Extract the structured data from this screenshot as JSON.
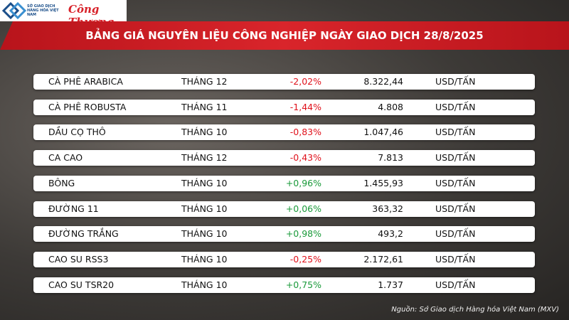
{
  "header": {
    "logo_text": "SỞ GIAO DỊCH HÀNG HÓA VIỆT NAM",
    "brand": "Công Thương",
    "title": "BẢNG GIÁ NGUYÊN LIỆU CÔNG NGHIỆP NGÀY GIAO DỊCH 28/8/2025"
  },
  "table": {
    "positive_color": "#1a9a3a",
    "negative_color": "#e0101a",
    "rows": [
      [
        "CÀ PHÊ ARABICA",
        "THÁNG 12",
        "-2,02%",
        "8.322,44",
        "USD/TẤN"
      ],
      [
        "CÀ PHÊ ROBUSTA",
        "THÁNG 11",
        "-1,44%",
        "4.808",
        "USD/TẤN"
      ],
      [
        "DẦU CỌ THÔ",
        "THÁNG 10",
        "-0,83%",
        "1.047,46",
        "USD/TẤN"
      ],
      [
        "CA CAO",
        "THÁNG 12",
        "-0,43%",
        "7.813",
        "USD/TẤN"
      ],
      [
        "BÔNG",
        "THÁNG 10",
        "+0,96%",
        "1.455,93",
        "USD/TẤN"
      ],
      [
        "ĐƯỜNG 11",
        "THÁNG 10",
        "+0,06%",
        "363,32",
        "USD/TẤN"
      ],
      [
        "ĐƯỜNG TRẮNG",
        "THÁNG 10",
        "+0,98%",
        "493,2",
        "USD/TẤN"
      ],
      [
        "CAO SU RSS3",
        "THÁNG 10",
        "-0,25%",
        "2.172,61",
        "USD/TẤN"
      ],
      [
        "CAO SU TSR20",
        "THÁNG 10",
        "+0,75%",
        "1.737",
        "USD/TẤN"
      ]
    ]
  },
  "footer": {
    "source": "Nguồn: Sở Giao dịch Hàng hóa Việt Nam (MXV)"
  }
}
